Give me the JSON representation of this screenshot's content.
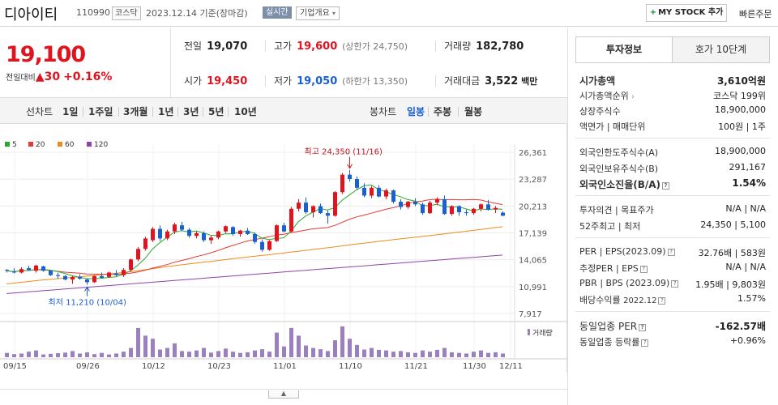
{
  "header": {
    "name": "디아이티",
    "code": "110990",
    "market": "코스닥",
    "date": "2023.12.14 기준(장마감)",
    "realtime": "실시간",
    "company_info": "기업개요",
    "my_stock": "MY STOCK 추가",
    "quick_order": "빠른주문"
  },
  "price": {
    "current": "19,100",
    "label": "전일대비",
    "change": "30",
    "change_pct": "+0.16%"
  },
  "quote": {
    "prev_label": "전일",
    "prev": "19,070",
    "high_label": "고가",
    "high": "19,600",
    "upper_limit": "(상한가 24,750)",
    "volume_label": "거래량",
    "volume": "182,780",
    "open_label": "시가",
    "open": "19,450",
    "low_label": "저가",
    "low": "19,050",
    "lower_limit": "(하한가 13,350)",
    "amount_label": "거래대금",
    "amount": "3,522",
    "amount_unit": "백만"
  },
  "period": {
    "line_chart": "선차트",
    "d1": "1일",
    "w1": "1주일",
    "m3": "3개월",
    "y1": "1년",
    "y3": "3년",
    "y5": "5년",
    "y10": "10년",
    "candle": "봉차트",
    "daily": "일봉",
    "weekly": "주봉",
    "monthly": "월봉"
  },
  "chart_data": {
    "type": "candlestick",
    "legend": [
      {
        "name": "5",
        "color": "#2aa82a"
      },
      {
        "name": "20",
        "color": "#e53935"
      },
      {
        "name": "60",
        "color": "#f08a1c"
      },
      {
        "name": "120",
        "color": "#8e44ad"
      }
    ],
    "y_ticks": [
      "26,361",
      "23,287",
      "20,213",
      "17,139",
      "14,065",
      "10,991",
      "7,917"
    ],
    "x_ticks": [
      "09/15",
      "09/26",
      "10/12",
      "10/23",
      "11/01",
      "11/10",
      "11/21",
      "11/30",
      "12/11"
    ],
    "ylim": [
      7917,
      26361
    ],
    "high_note": "최고 24,350 (11/16)",
    "low_note": "최저 11,210 (10/04)",
    "volume_label": "거래량",
    "candles": [
      [
        12900,
        13000,
        12600,
        12800
      ],
      [
        12700,
        13100,
        12500,
        12600
      ],
      [
        12600,
        13200,
        12500,
        13000
      ],
      [
        13100,
        13400,
        12800,
        12900
      ],
      [
        12800,
        13500,
        12600,
        13400
      ],
      [
        13300,
        13400,
        12700,
        12800
      ],
      [
        12800,
        12900,
        12200,
        12300
      ],
      [
        12300,
        12600,
        11900,
        12200
      ],
      [
        12200,
        12300,
        11700,
        11800
      ],
      [
        11800,
        12200,
        11300,
        12100
      ],
      [
        12100,
        12400,
        11800,
        11900
      ],
      [
        11800,
        11900,
        11210,
        11500
      ],
      [
        11500,
        12300,
        11400,
        12200
      ],
      [
        12200,
        12600,
        11900,
        12000
      ],
      [
        12100,
        12700,
        12000,
        12600
      ],
      [
        12500,
        12900,
        12200,
        12300
      ],
      [
        12300,
        13100,
        12100,
        12900
      ],
      [
        12900,
        14200,
        12700,
        14100
      ],
      [
        14100,
        15500,
        13900,
        15300
      ],
      [
        15300,
        16700,
        15100,
        16500
      ],
      [
        16300,
        17800,
        16100,
        17600
      ],
      [
        17600,
        18000,
        16200,
        16500
      ],
      [
        16500,
        17500,
        16300,
        17300
      ],
      [
        17300,
        18300,
        17000,
        18100
      ],
      [
        18000,
        18400,
        17300,
        17500
      ],
      [
        17500,
        17700,
        16600,
        16800
      ],
      [
        16800,
        17300,
        16500,
        17100
      ],
      [
        17100,
        17300,
        16100,
        16300
      ],
      [
        16300,
        16800,
        15900,
        16600
      ],
      [
        16600,
        17400,
        16400,
        17300
      ],
      [
        17300,
        18000,
        17100,
        17900
      ],
      [
        17800,
        17900,
        16800,
        17000
      ],
      [
        17000,
        17500,
        16700,
        17400
      ],
      [
        17400,
        17700,
        16900,
        17000
      ],
      [
        17000,
        17200,
        15900,
        16100
      ],
      [
        16100,
        16400,
        15000,
        15200
      ],
      [
        15200,
        16300,
        15100,
        16200
      ],
      [
        16200,
        18100,
        16100,
        18000
      ],
      [
        18000,
        18300,
        17200,
        17300
      ],
      [
        17300,
        20100,
        17200,
        19900
      ],
      [
        19900,
        21000,
        19600,
        20600
      ],
      [
        20600,
        21200,
        19300,
        19500
      ],
      [
        19500,
        20300,
        18900,
        20200
      ],
      [
        20200,
        20500,
        19300,
        19400
      ],
      [
        19400,
        19700,
        18200,
        19100
      ],
      [
        19100,
        21900,
        19000,
        21800
      ],
      [
        21800,
        24000,
        21600,
        23800
      ],
      [
        23800,
        24350,
        23000,
        23300
      ],
      [
        23300,
        23600,
        22100,
        22300
      ],
      [
        22300,
        22800,
        21200,
        21400
      ],
      [
        21400,
        22500,
        21100,
        22300
      ],
      [
        22300,
        22600,
        21200,
        21300
      ],
      [
        21300,
        22200,
        21000,
        22000
      ],
      [
        22000,
        22100,
        20500,
        20700
      ],
      [
        20700,
        21000,
        19800,
        20100
      ],
      [
        20100,
        20800,
        19900,
        20700
      ],
      [
        20700,
        21100,
        20200,
        20400
      ],
      [
        20400,
        20600,
        19200,
        19400
      ],
      [
        19400,
        20800,
        19300,
        20600
      ],
      [
        20600,
        21200,
        20300,
        21000
      ],
      [
        21000,
        21400,
        19200,
        19300
      ],
      [
        19300,
        20300,
        19100,
        20200
      ],
      [
        20200,
        20300,
        19100,
        19500
      ],
      [
        19500,
        19800,
        19100,
        19400
      ],
      [
        19400,
        20000,
        19200,
        19900
      ],
      [
        19900,
        20500,
        19600,
        20400
      ],
      [
        20400,
        20900,
        19700,
        19800
      ],
      [
        19800,
        20200,
        19400,
        20000
      ],
      [
        19450,
        19600,
        19050,
        19100
      ]
    ],
    "volumes": [
      14,
      10,
      12,
      18,
      22,
      9,
      11,
      13,
      15,
      20,
      12,
      16,
      10,
      14,
      9,
      12,
      18,
      30,
      95,
      70,
      60,
      25,
      30,
      45,
      20,
      18,
      22,
      30,
      15,
      20,
      28,
      18,
      14,
      16,
      22,
      26,
      18,
      80,
      35,
      95,
      70,
      38,
      30,
      26,
      20,
      55,
      100,
      60,
      40,
      25,
      30,
      24,
      22,
      18,
      20,
      16,
      14,
      22,
      18,
      24,
      30,
      16,
      14,
      12,
      18,
      22,
      14,
      16,
      12
    ]
  },
  "panel": {
    "tab_invest": "투자정보",
    "tab_quote": "호가 10단계",
    "rows": {
      "mcap_l": "시가총액",
      "mcap_r": "3,610억원",
      "rank_l": "시가총액순위",
      "rank_r": "코스닥 199위",
      "shares_l": "상장주식수",
      "shares_r": "18,900,000",
      "par_l": "액면가 | 매매단위",
      "par_r": "100원 | 1주",
      "flimit_l": "외국인한도주식수(A)",
      "flimit_r": "18,900,000",
      "fhold_l": "외국인보유주식수(B)",
      "fhold_r": "291,167",
      "fratio_l": "외국인소진율(B/A)",
      "fratio_r": "1.54%",
      "opinion_l": "투자의견 | 목표주가",
      "opinion_r": "N/A | N/A",
      "w52_l": "52주최고 | 최저",
      "w52_r": "24,350 | 5,100",
      "per_l": "PER | EPS(2023.09)",
      "per_r": "32.76배 | 583원",
      "eper_l": "추정PER | EPS",
      "eper_r": "N/A | N/A",
      "pbr_l": "PBR | BPS (2023.09)",
      "pbr_r": "1.95배 | 9,803원",
      "div_l": "배당수익률",
      "div_year": "2022.12",
      "div_r": "1.57%",
      "sper_l": "동일업종 PER",
      "sper_r": "-162.57배",
      "srate_l": "동일업종 등락률",
      "srate_r": "+0.96%"
    }
  }
}
